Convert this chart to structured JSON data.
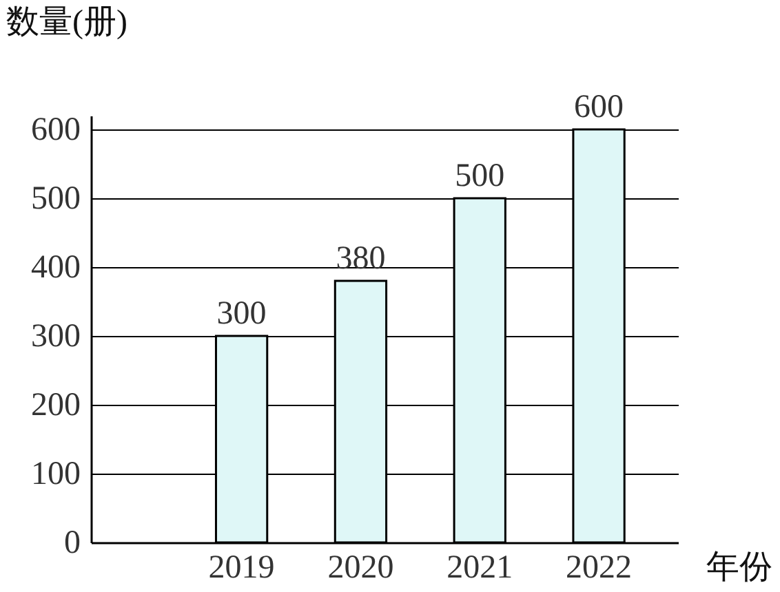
{
  "chart_data": {
    "type": "bar",
    "xlabel": "年份",
    "ylabel": "数量(册)",
    "categories": [
      "2019",
      "2020",
      "2021",
      "2022"
    ],
    "values": [
      300,
      380,
      500,
      600
    ],
    "color": "#dff7f7",
    "ylim": [
      0,
      620
    ],
    "yticks": [
      0,
      100,
      200,
      300,
      400,
      500,
      600
    ],
    "grid": "y",
    "data_labels": true
  }
}
